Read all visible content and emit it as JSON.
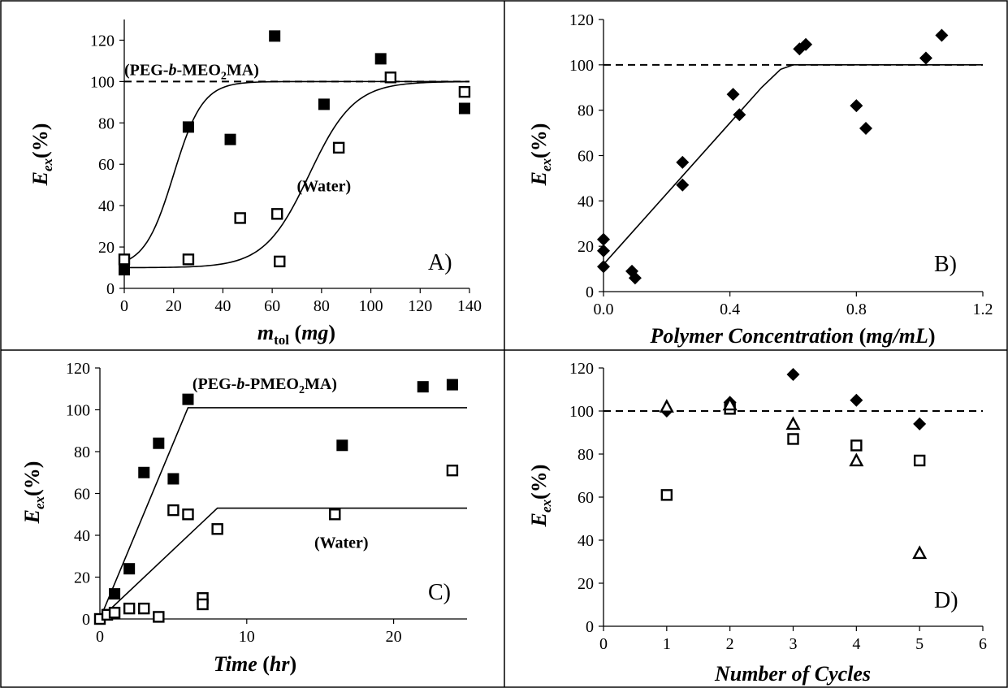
{
  "chart_data": [
    {
      "id": "A",
      "type": "scatter",
      "panel_label": "A)",
      "ylabel": {
        "main": "E",
        "sub": "ex",
        "unit": "(%)"
      },
      "xlabel": {
        "main": "m",
        "sub": "tol",
        "unit": "(mg)"
      },
      "xlim": [
        0,
        140
      ],
      "ylim": [
        0,
        130
      ],
      "xticks": [
        0,
        20,
        40,
        60,
        80,
        100,
        120,
        140
      ],
      "yticks": [
        0,
        20,
        40,
        60,
        80,
        100,
        120
      ],
      "reference_line": 100,
      "annotations": [
        {
          "text": "(PEG-",
          "italic": "b",
          "rest": "-MEO",
          "sub": "2",
          "tail": "MA)",
          "x": 0,
          "y": 103
        },
        {
          "text": "(Water)",
          "x": 70,
          "y": 47
        }
      ],
      "series": [
        {
          "marker": "filled-square",
          "x": [
            0,
            26,
            43,
            61,
            81,
            104,
            138
          ],
          "y": [
            9,
            78,
            72,
            122,
            89,
            111,
            87
          ]
        },
        {
          "marker": "open-square",
          "x": [
            0,
            26,
            47,
            62,
            63,
            87,
            108,
            138
          ],
          "y": [
            14,
            14,
            34,
            36,
            13,
            68,
            102,
            95
          ]
        }
      ],
      "fits": [
        {
          "type": "sigmoid",
          "low": 10,
          "high": 100,
          "mid": 20,
          "k": 0.17
        },
        {
          "type": "sigmoid",
          "low": 10,
          "high": 100,
          "mid": 75,
          "k": 0.11
        }
      ]
    },
    {
      "id": "B",
      "type": "scatter",
      "panel_label": "B)",
      "ylabel": {
        "main": "E",
        "sub": "ex",
        "unit": "(%)"
      },
      "xlabel": {
        "main": "Polymer Concentration",
        "sub": "",
        "unit": "(mg/mL)"
      },
      "xlim": [
        0,
        1.2
      ],
      "ylim": [
        0,
        120
      ],
      "xticks": [
        0.0,
        0.4,
        0.8,
        1.2
      ],
      "xtick_labels": [
        "0.0",
        "0.4",
        "0.8",
        "1.2"
      ],
      "yticks": [
        0,
        20,
        40,
        60,
        80,
        100,
        120
      ],
      "reference_line": 100,
      "series": [
        {
          "marker": "filled-diamond",
          "x": [
            0.0,
            0.0,
            0.0,
            0.09,
            0.1,
            0.25,
            0.25,
            0.41,
            0.43,
            0.62,
            0.64,
            0.8,
            0.83,
            1.02,
            1.07
          ],
          "y": [
            23,
            18,
            11,
            9,
            6,
            57,
            47,
            87,
            78,
            107,
            109,
            82,
            72,
            103,
            113
          ]
        }
      ],
      "fits": [
        {
          "type": "polyline",
          "points": [
            [
              0.0,
              12
            ],
            [
              0.5,
              90
            ],
            [
              0.56,
              98
            ],
            [
              0.6,
              100
            ],
            [
              1.2,
              100
            ]
          ]
        }
      ]
    },
    {
      "id": "C",
      "type": "scatter",
      "panel_label": "C)",
      "ylabel": {
        "main": "E",
        "sub": "ex",
        "unit": "(%)"
      },
      "xlabel": {
        "main": "Time",
        "sub": "",
        "unit": "(hr)"
      },
      "xlim": [
        0,
        25
      ],
      "ylim": [
        0,
        120
      ],
      "xticks": [
        0,
        10,
        20
      ],
      "yticks": [
        0,
        20,
        40,
        60,
        80,
        100,
        120
      ],
      "annotations": [
        {
          "text": "(PEG-",
          "italic": "b",
          "rest": "-PMEO",
          "sub": "2",
          "tail": "MA)",
          "x": 6.3,
          "y": 110
        },
        {
          "text": "(Water)",
          "x": 14.6,
          "y": 34
        }
      ],
      "series": [
        {
          "marker": "filled-square",
          "x": [
            0,
            0.5,
            1,
            2,
            3,
            4,
            5,
            6,
            16.5,
            22,
            24
          ],
          "y": [
            0,
            2,
            12,
            24,
            70,
            84,
            67,
            105,
            83,
            111,
            112
          ]
        },
        {
          "marker": "open-square",
          "x": [
            0,
            0.5,
            1,
            2,
            3,
            4,
            5,
            6,
            7,
            7,
            8,
            16,
            24
          ],
          "y": [
            0,
            2,
            3,
            5,
            5,
            1,
            52,
            50,
            10,
            7,
            43,
            50,
            71
          ]
        }
      ],
      "fits": [
        {
          "type": "polyline",
          "points": [
            [
              0,
              0
            ],
            [
              6,
              101
            ],
            [
              25,
              101
            ]
          ]
        },
        {
          "type": "polyline",
          "points": [
            [
              0,
              0
            ],
            [
              8,
              53
            ],
            [
              25,
              53
            ]
          ]
        }
      ]
    },
    {
      "id": "D",
      "type": "scatter",
      "panel_label": "D)",
      "ylabel": {
        "main": "E",
        "sub": "ex",
        "unit": "(%)"
      },
      "xlabel": {
        "main": "Number of Cycles",
        "sub": "",
        "unit": ""
      },
      "xlim": [
        0,
        6
      ],
      "ylim": [
        0,
        120
      ],
      "xticks": [
        0,
        1,
        2,
        3,
        4,
        5,
        6
      ],
      "yticks": [
        0,
        20,
        40,
        60,
        80,
        100,
        120
      ],
      "reference_line": 100,
      "series": [
        {
          "marker": "filled-diamond",
          "x": [
            1,
            2,
            3,
            4,
            5
          ],
          "y": [
            100,
            104,
            117,
            105,
            94
          ]
        },
        {
          "marker": "open-square",
          "x": [
            1,
            2,
            3,
            4,
            5
          ],
          "y": [
            61,
            101,
            87,
            84,
            77
          ]
        },
        {
          "marker": "open-triangle",
          "x": [
            1,
            2,
            3,
            4,
            5
          ],
          "y": [
            102,
            103,
            94,
            77,
            34
          ]
        }
      ]
    }
  ]
}
